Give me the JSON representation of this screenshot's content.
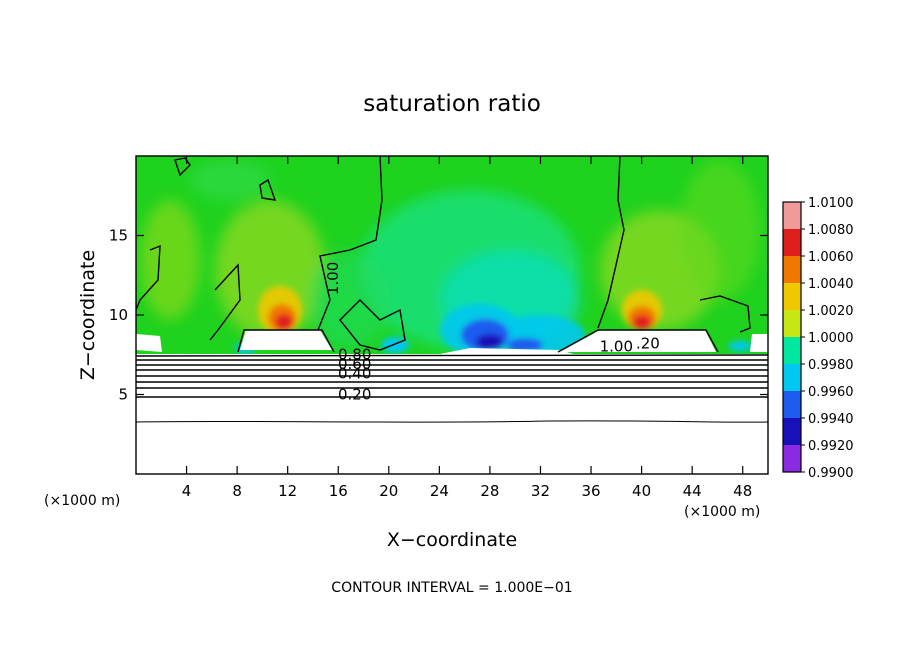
{
  "chart_data": {
    "type": "heatmap",
    "title": "saturation ratio",
    "xlabel": "X−coordinate",
    "ylabel": "Z−coordinate",
    "x_unit": "(×1000 m)",
    "z_unit": "(×1000 m)",
    "xlim": [
      0,
      50
    ],
    "ylim": [
      0,
      20
    ],
    "x_ticks": [
      4,
      8,
      12,
      16,
      20,
      24,
      28,
      32,
      36,
      40,
      44,
      48
    ],
    "y_ticks": [
      5,
      10,
      15
    ],
    "colorbar": {
      "levels": [
        0.99,
        0.992,
        0.994,
        0.996,
        0.998,
        1.0,
        1.002,
        1.004,
        1.006,
        1.008,
        1.01
      ],
      "labels": [
        "0.9900",
        "0.9920",
        "0.9940",
        "0.9960",
        "0.9980",
        "1.0000",
        "1.0020",
        "1.0040",
        "1.0060",
        "1.0080",
        "1.0100"
      ],
      "colors": [
        "#8a2be2",
        "#1a10b8",
        "#1e5cf0",
        "#00c8f0",
        "#00e8a0",
        "#22c81e",
        "#c8e614",
        "#f0c800",
        "#f07800",
        "#e01e1e",
        "#f09a9a"
      ]
    },
    "contour_labels": [
      {
        "text": "1.00",
        "x": 16.0,
        "z": 12.3
      },
      {
        "text": "0.80",
        "x": 17.3,
        "z": 7.2
      },
      {
        "text": "0.60",
        "x": 17.3,
        "z": 6.6
      },
      {
        "text": "0.40",
        "x": 17.3,
        "z": 6.0
      },
      {
        "text": "0.20",
        "x": 17.3,
        "z": 4.7
      },
      {
        "text": "1.00",
        "x": 38.0,
        "z": 7.7
      },
      {
        "text": ".20",
        "x": 40.5,
        "z": 7.9
      }
    ],
    "contour_levels_below_cloud": [
      7.5,
      7.2,
      6.9,
      6.6,
      6.3,
      6.0,
      5.7,
      5.3,
      4.95,
      3.5
    ],
    "contour_interval_text": "CONTOUR INTERVAL = 1.000E−01"
  }
}
